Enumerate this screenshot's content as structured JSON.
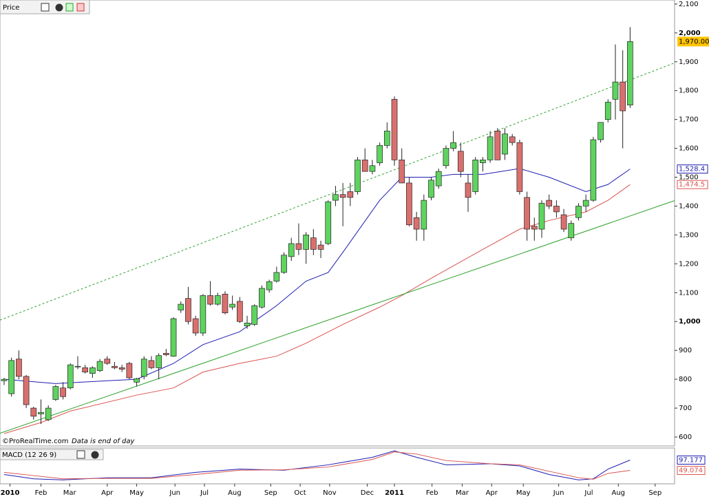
{
  "chart_data": [
    {
      "type": "candlestick",
      "title": "Price",
      "credit": "©ProRealTime.com",
      "note": "Data is end of day",
      "colors": {
        "up": "#5fd35f",
        "down": "#d9706e"
      },
      "xlim": [
        -0.56,
        91.04
      ],
      "xticks": [
        {
          "value": 0.8,
          "label": "2010"
        },
        {
          "value": 5.0,
          "label": "Feb"
        },
        {
          "value": 8.9,
          "label": "Mar"
        },
        {
          "value": 14.0,
          "label": "Apr"
        },
        {
          "value": 18.0,
          "label": "May"
        },
        {
          "value": 23.2,
          "label": "Jun"
        },
        {
          "value": 27.2,
          "label": "Jul"
        },
        {
          "value": 31.3,
          "label": "Aug"
        },
        {
          "value": 36.2,
          "label": "Sep"
        },
        {
          "value": 40.2,
          "label": "Oct"
        },
        {
          "value": 44.2,
          "label": "Nov"
        },
        {
          "value": 49.3,
          "label": "Dec"
        },
        {
          "value": 53.0,
          "label": "2011"
        },
        {
          "value": 58.1,
          "label": "Feb"
        },
        {
          "value": 62.2,
          "label": "Mar"
        },
        {
          "value": 66.2,
          "label": "Apr"
        },
        {
          "value": 70.5,
          "label": "May"
        },
        {
          "value": 75.3,
          "label": "Jun"
        },
        {
          "value": 79.4,
          "label": "Jul"
        },
        {
          "value": 83.4,
          "label": "Aug"
        },
        {
          "value": 88.4,
          "label": "Sep"
        }
      ],
      "ylim": [
        569,
        2114
      ],
      "yticks": [
        600,
        700,
        800,
        900,
        {
          "value": 1000,
          "label": "1,000"
        },
        {
          "value": 1100,
          "label": "1,100"
        },
        {
          "value": 1200,
          "label": "1,200"
        },
        {
          "value": 1300,
          "label": "1,300"
        },
        {
          "value": 1400,
          "label": "1,400"
        },
        {
          "value": 1500,
          "label": "1,500"
        },
        {
          "value": 1600,
          "label": "1,600"
        },
        {
          "value": 1700,
          "label": "1,700"
        },
        {
          "value": 1800,
          "label": "1,800"
        },
        {
          "value": 1900,
          "label": "1,900"
        },
        {
          "value": 2000,
          "label": "2,000"
        },
        {
          "value": 2100,
          "label": "2,100"
        }
      ],
      "ohlc": [
        [
          795,
          805,
          780,
          800
        ],
        [
          750,
          875,
          740,
          865
        ],
        [
          870,
          900,
          800,
          810
        ],
        [
          810,
          815,
          700,
          712
        ],
        [
          700,
          705,
          660,
          672
        ],
        [
          680,
          730,
          645,
          685
        ],
        [
          660,
          710,
          655,
          700
        ],
        [
          730,
          780,
          725,
          775
        ],
        [
          770,
          790,
          730,
          740
        ],
        [
          770,
          855,
          765,
          850
        ],
        [
          845,
          880,
          835,
          845
        ],
        [
          840,
          850,
          820,
          825
        ],
        [
          820,
          845,
          805,
          840
        ],
        [
          830,
          870,
          825,
          862
        ],
        [
          870,
          880,
          850,
          855
        ],
        [
          845,
          860,
          835,
          840
        ],
        [
          840,
          850,
          825,
          835
        ],
        [
          855,
          860,
          800,
          805
        ],
        [
          790,
          805,
          775,
          802
        ],
        [
          810,
          880,
          800,
          870
        ],
        [
          865,
          880,
          835,
          840
        ],
        [
          840,
          890,
          800,
          882
        ],
        [
          890,
          905,
          880,
          885
        ],
        [
          880,
          1015,
          878,
          1010
        ],
        [
          1040,
          1070,
          1030,
          1060
        ],
        [
          1080,
          1120,
          990,
          1000
        ],
        [
          1010,
          1020,
          950,
          960
        ],
        [
          960,
          1095,
          950,
          1090
        ],
        [
          1090,
          1140,
          1055,
          1060
        ],
        [
          1060,
          1100,
          1055,
          1090
        ],
        [
          1095,
          1105,
          1025,
          1030
        ],
        [
          1050,
          1090,
          1040,
          1060
        ],
        [
          1070,
          1085,
          995,
          1000
        ],
        [
          985,
          1020,
          975,
          995
        ],
        [
          990,
          1060,
          985,
          1055
        ],
        [
          1050,
          1125,
          1045,
          1115
        ],
        [
          1110,
          1145,
          1100,
          1138
        ],
        [
          1140,
          1190,
          1135,
          1170
        ],
        [
          1170,
          1240,
          1165,
          1230
        ],
        [
          1225,
          1290,
          1210,
          1270
        ],
        [
          1270,
          1340,
          1230,
          1250
        ],
        [
          1250,
          1310,
          1200,
          1300
        ],
        [
          1290,
          1320,
          1230,
          1250
        ],
        [
          1265,
          1280,
          1220,
          1250
        ],
        [
          1270,
          1420,
          1265,
          1415
        ],
        [
          1420,
          1470,
          1400,
          1440
        ],
        [
          1440,
          1480,
          1330,
          1430
        ],
        [
          1450,
          1480,
          1400,
          1430
        ],
        [
          1450,
          1570,
          1440,
          1560
        ],
        [
          1560,
          1600,
          1520,
          1520
        ],
        [
          1520,
          1560,
          1510,
          1540
        ],
        [
          1550,
          1620,
          1540,
          1610
        ],
        [
          1610,
          1690,
          1600,
          1660
        ],
        [
          1770,
          1780,
          1540,
          1560
        ],
        [
          1560,
          1600,
          1480,
          1480
        ],
        [
          1480,
          1500,
          1330,
          1335
        ],
        [
          1360,
          1380,
          1280,
          1320
        ],
        [
          1320,
          1440,
          1280,
          1420
        ],
        [
          1430,
          1500,
          1420,
          1490
        ],
        [
          1470,
          1530,
          1460,
          1520
        ],
        [
          1540,
          1610,
          1530,
          1600
        ],
        [
          1600,
          1660,
          1590,
          1620
        ],
        [
          1590,
          1620,
          1500,
          1520
        ],
        [
          1480,
          1510,
          1380,
          1430
        ],
        [
          1450,
          1570,
          1440,
          1560
        ],
        [
          1550,
          1570,
          1520,
          1560
        ],
        [
          1560,
          1660,
          1550,
          1640
        ],
        [
          1660,
          1670,
          1560,
          1560
        ],
        [
          1580,
          1670,
          1560,
          1650
        ],
        [
          1640,
          1650,
          1610,
          1620
        ],
        [
          1620,
          1630,
          1440,
          1450
        ],
        [
          1430,
          1450,
          1280,
          1320
        ],
        [
          1330,
          1360,
          1280,
          1320
        ],
        [
          1320,
          1420,
          1290,
          1410
        ],
        [
          1420,
          1440,
          1390,
          1400
        ],
        [
          1400,
          1420,
          1360,
          1380
        ],
        [
          1370,
          1390,
          1310,
          1320
        ],
        [
          1290,
          1350,
          1280,
          1340
        ],
        [
          1360,
          1410,
          1350,
          1400
        ],
        [
          1400,
          1440,
          1380,
          1420
        ],
        [
          1420,
          1640,
          1415,
          1630
        ],
        [
          1630,
          1690,
          1620,
          1690
        ],
        [
          1700,
          1770,
          1690,
          1760
        ],
        [
          1770,
          1960,
          1700,
          1830
        ],
        [
          1830,
          1940,
          1600,
          1730
        ],
        [
          1750,
          2020,
          1740,
          1970
        ]
      ],
      "last_label": {
        "value": 1970,
        "label": "1,970.00",
        "color": "#ffc400"
      },
      "series": [
        {
          "color": "#1c1cb0",
          "value_label": "1,528.4",
          "x": [
            0,
            7,
            14,
            18,
            23,
            27,
            32,
            37,
            41,
            44,
            46,
            51,
            54,
            58,
            61,
            65,
            70,
            74,
            79,
            82,
            85
          ],
          "values": [
            800,
            785,
            795,
            800,
            855,
            920,
            965,
            1055,
            1140,
            1170,
            1240,
            1420,
            1500,
            1500,
            1510,
            1510,
            1530,
            1500,
            1450,
            1475,
            1528.4
          ]
        },
        {
          "color": "#d9534f",
          "value_label": "1,474.5",
          "x": [
            0,
            5,
            9,
            18,
            23,
            27,
            32,
            37,
            41,
            46,
            51,
            54,
            58,
            65,
            70,
            74,
            79,
            82,
            85
          ],
          "values": [
            612,
            650,
            690,
            745,
            770,
            825,
            855,
            880,
            925,
            990,
            1050,
            1090,
            1150,
            1250,
            1320,
            1350,
            1380,
            1420,
            1474.5
          ]
        },
        {
          "color": "#2aa02a",
          "x": [
            -0.56,
            91.04
          ],
          "values": [
            613,
            1419
          ]
        },
        {
          "color": "#2aa02a",
          "dashed": true,
          "x": [
            -0.56,
            91.04
          ],
          "values": [
            1005,
            1896
          ]
        }
      ]
    },
    {
      "type": "line",
      "title": "MACD (12 26 9)",
      "xlim": [
        -0.56,
        91.04
      ],
      "ylim": [
        -10,
        150
      ],
      "series": [
        {
          "color": "#1c1cb0",
          "value_label": "97.177",
          "x": [
            0,
            4,
            8,
            14,
            20,
            26,
            32,
            38,
            44,
            50,
            53,
            56,
            60,
            66,
            70,
            74,
            78,
            80,
            82,
            85
          ],
          "values": [
            30,
            10,
            5,
            15,
            15,
            40,
            55,
            50,
            75,
            110,
            140,
            110,
            75,
            80,
            70,
            30,
            5,
            10,
            55,
            97.177
          ]
        },
        {
          "color": "#d9534f",
          "value_label": "49.074",
          "x": [
            0,
            4,
            8,
            14,
            20,
            26,
            32,
            38,
            44,
            50,
            53,
            56,
            60,
            66,
            70,
            74,
            78,
            80,
            82,
            85
          ],
          "values": [
            40,
            25,
            10,
            12,
            12,
            30,
            50,
            52,
            65,
            100,
            135,
            125,
            95,
            80,
            75,
            45,
            15,
            8,
            35,
            49.074
          ]
        }
      ]
    }
  ]
}
